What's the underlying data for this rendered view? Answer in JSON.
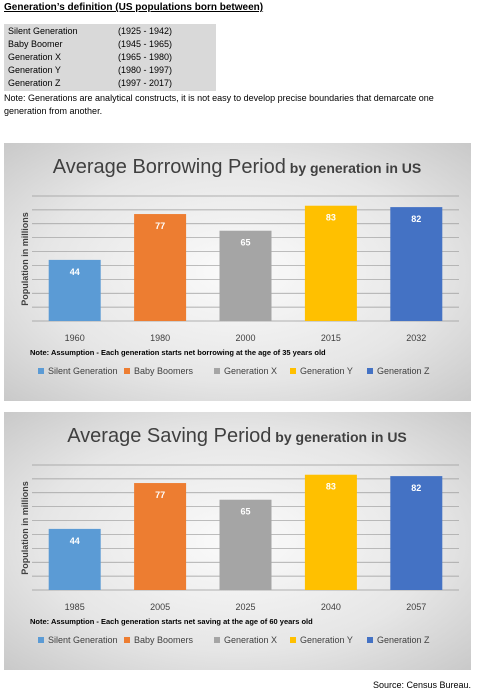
{
  "definition": {
    "title": "Generation’s definition (US populations born between)",
    "rows": [
      {
        "name": "Silent Generation",
        "range": "(1925 - 1942)"
      },
      {
        "name": "Baby Boomer",
        "range": "(1945 - 1965)"
      },
      {
        "name": "Generation X",
        "range": "(1965 - 1980)"
      },
      {
        "name": "Generation Y",
        "range": "(1980 - 1997)"
      },
      {
        "name": "Generation Z",
        "range": "(1997 - 2017)"
      }
    ],
    "note": "Note: Generations are analytical constructs, it is not easy to develop precise boundaries that demarcate one generation from another."
  },
  "chart_data": [
    {
      "type": "bar",
      "title_main": "Average Borrowing Period",
      "title_sub": " by generation in US",
      "ylabel": "Population in millions",
      "categories": [
        "1960",
        "1980",
        "2000",
        "2015",
        "2032"
      ],
      "values": [
        44,
        77,
        65,
        83,
        82
      ],
      "colors": [
        "#5b9bd5",
        "#ed7d31",
        "#a5a5a5",
        "#ffc000",
        "#4472c4"
      ],
      "ylim": [
        0,
        90
      ],
      "grid": true,
      "note": "Note: Assumption - Each generation starts net borrowing at the age of 35 years old",
      "legend": [
        "Silent Generation",
        "Baby Boomers",
        "Generation X",
        "Generation Y",
        "Generation Z"
      ],
      "legend_position": "bottom"
    },
    {
      "type": "bar",
      "title_main": "Average Saving Period",
      "title_sub": " by generation in US",
      "ylabel": "Population in millions",
      "categories": [
        "1985",
        "2005",
        "2025",
        "2040",
        "2057"
      ],
      "values": [
        44,
        77,
        65,
        83,
        82
      ],
      "colors": [
        "#5b9bd5",
        "#ed7d31",
        "#a5a5a5",
        "#ffc000",
        "#4472c4"
      ],
      "ylim": [
        0,
        90
      ],
      "grid": true,
      "note": "Note: Assumption - Each generation starts net saving at the age of 60 years old",
      "legend": [
        "Silent Generation",
        "Baby Boomers",
        "Generation X",
        "Generation Y",
        "Generation Z"
      ],
      "legend_position": "bottom"
    }
  ],
  "source": "Source: Census Bureau."
}
